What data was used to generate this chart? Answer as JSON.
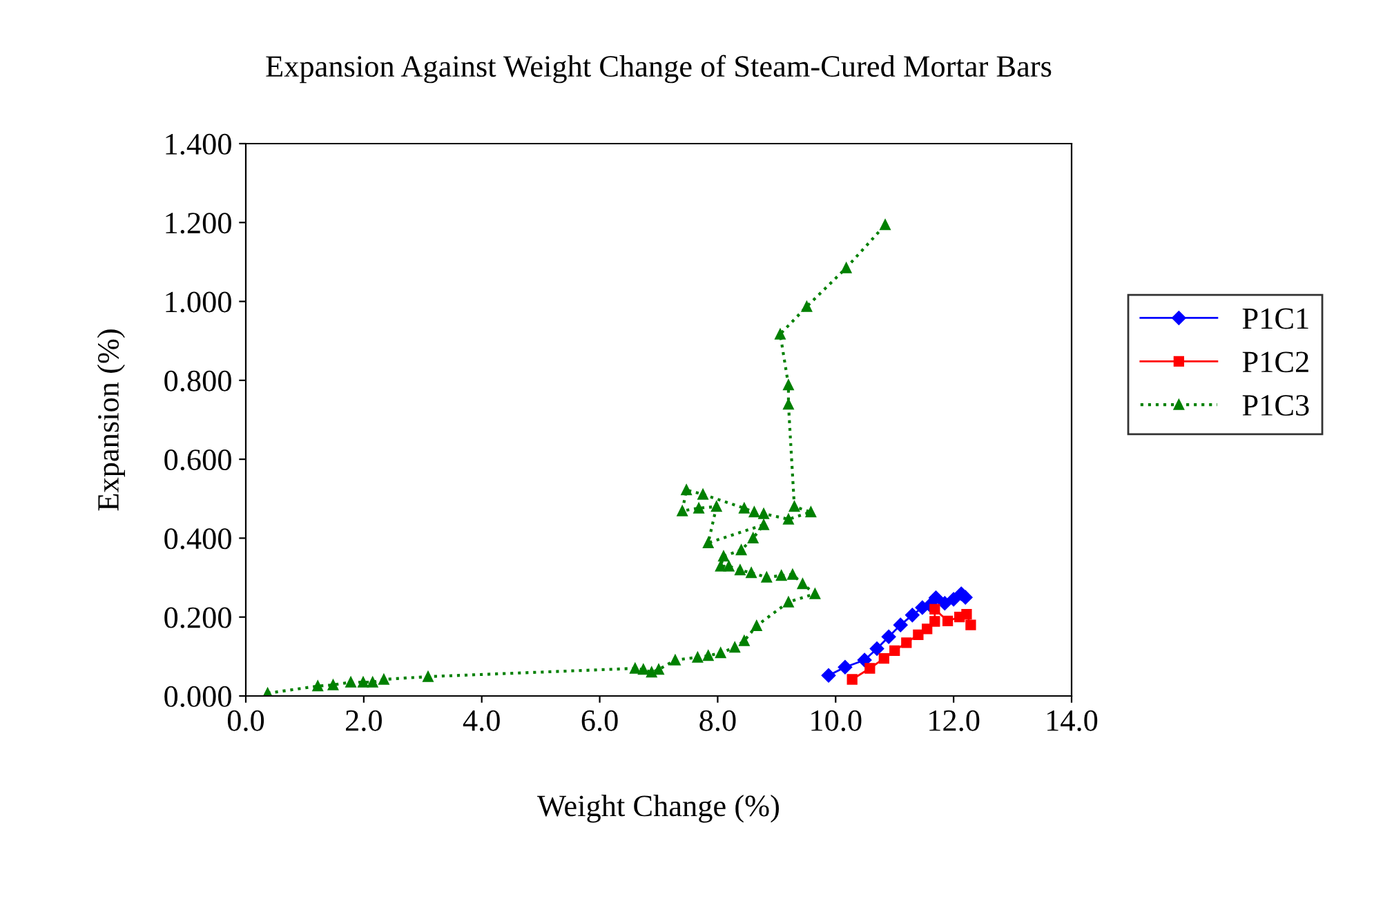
{
  "chart_data": {
    "type": "line",
    "title": "Expansion Against Weight Change of Steam-Cured Mortar Bars",
    "xlabel": "Weight Change (%)",
    "ylabel": "Expansion (%)",
    "xlim": [
      0,
      14
    ],
    "xticks": [
      {
        "value": 0,
        "label": "0.0"
      },
      {
        "value": 2,
        "label": "2.0"
      },
      {
        "value": 4,
        "label": "4.0"
      },
      {
        "value": 6,
        "label": "6.0"
      },
      {
        "value": 8,
        "label": "8.0"
      },
      {
        "value": 10,
        "label": "10.0"
      },
      {
        "value": 12,
        "label": "12.0"
      },
      {
        "value": 14,
        "label": "14.0"
      }
    ],
    "ylim": [
      0,
      1.4
    ],
    "yticks": [
      {
        "value": 0,
        "label": "0.000"
      },
      {
        "value": 0.2,
        "label": "0.200"
      },
      {
        "value": 0.4,
        "label": "0.400"
      },
      {
        "value": 0.6,
        "label": "0.600"
      },
      {
        "value": 0.8,
        "label": "0.800"
      },
      {
        "value": 1.0,
        "label": "1.000"
      },
      {
        "value": 1.2,
        "label": "1.200"
      },
      {
        "value": 1.4,
        "label": "1.400"
      }
    ],
    "grid": false,
    "legend": "right",
    "series": [
      {
        "name": "P1C1",
        "color": "#0000ff",
        "marker": "diamond",
        "line_style": "solid",
        "x": [
          9.88,
          10.16,
          10.49,
          10.7,
          10.9,
          11.1,
          11.3,
          11.47,
          11.6,
          11.7,
          11.85,
          12.0,
          12.13,
          12.2
        ],
        "values": [
          0.052,
          0.073,
          0.091,
          0.12,
          0.15,
          0.18,
          0.205,
          0.224,
          0.23,
          0.249,
          0.235,
          0.245,
          0.259,
          0.25
        ]
      },
      {
        "name": "P1C2",
        "color": "#ff0000",
        "marker": "square",
        "line_style": "solid",
        "x": [
          10.28,
          10.58,
          10.82,
          11.0,
          11.2,
          11.4,
          11.55,
          11.68,
          11.68,
          11.9,
          12.1,
          12.22,
          12.29
        ],
        "values": [
          0.042,
          0.07,
          0.095,
          0.115,
          0.135,
          0.155,
          0.17,
          0.189,
          0.22,
          0.19,
          0.2,
          0.207,
          0.18
        ]
      },
      {
        "name": "P1C3",
        "color": "#008000",
        "marker": "triangle",
        "line_style": "dotted",
        "x": [
          0.37,
          1.22,
          1.48,
          1.78,
          1.99,
          2.15,
          2.34,
          3.09,
          6.6,
          6.74,
          6.88,
          7.0,
          7.28,
          7.66,
          7.84,
          8.05,
          8.29,
          8.45,
          8.66,
          9.2,
          9.65,
          9.44,
          9.27,
          9.08,
          8.83,
          8.57,
          8.38,
          8.19,
          8.05,
          8.1,
          8.4,
          8.6,
          8.78,
          7.84,
          7.98,
          7.68,
          7.4,
          7.47,
          7.75,
          8.45,
          8.62,
          8.78,
          9.2,
          9.58,
          9.3,
          9.2,
          9.2,
          9.06,
          9.51,
          10.18,
          10.84
        ],
        "values": [
          0.007,
          0.025,
          0.028,
          0.035,
          0.035,
          0.035,
          0.042,
          0.049,
          0.07,
          0.067,
          0.06,
          0.067,
          0.091,
          0.098,
          0.102,
          0.109,
          0.123,
          0.14,
          0.178,
          0.238,
          0.259,
          0.284,
          0.308,
          0.305,
          0.301,
          0.312,
          0.319,
          0.329,
          0.329,
          0.354,
          0.37,
          0.4,
          0.434,
          0.388,
          0.48,
          0.476,
          0.469,
          0.522,
          0.511,
          0.476,
          0.466,
          0.462,
          0.448,
          0.466,
          0.48,
          0.739,
          0.788,
          0.917,
          0.987,
          1.085,
          1.194
        ]
      }
    ]
  }
}
